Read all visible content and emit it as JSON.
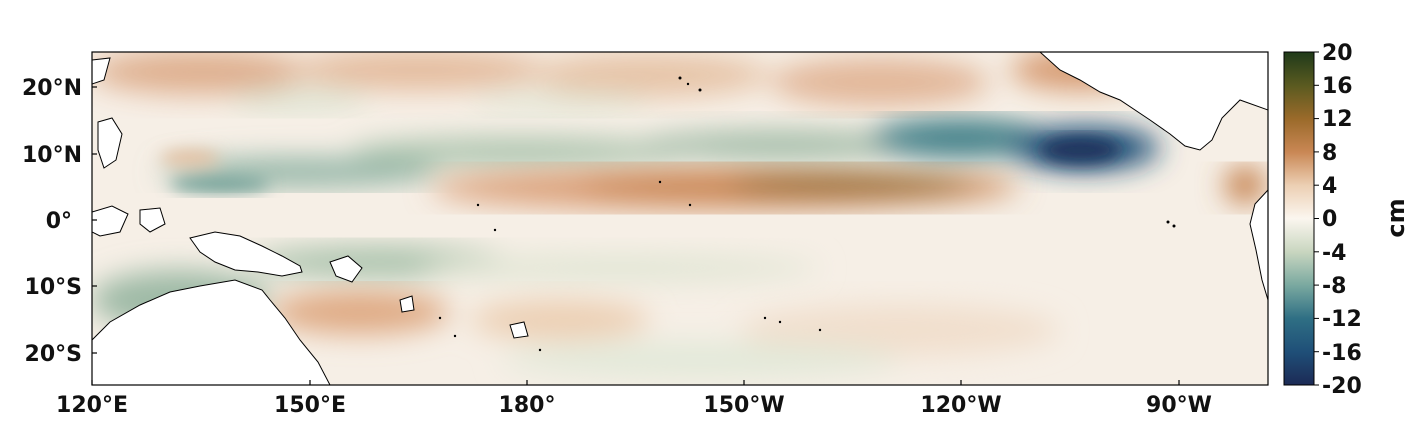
{
  "map": {
    "x_ticks": [
      "120°E",
      "150°E",
      "180°",
      "150°W",
      "120°W",
      "90°W"
    ],
    "y_ticks": [
      "20°N",
      "10°N",
      "0°",
      "10°S",
      "20°S"
    ]
  },
  "colorbar": {
    "unit": "cm",
    "ticks": [
      "20",
      "16",
      "12",
      "8",
      "4",
      "0",
      "-4",
      "-8",
      "-12",
      "-16",
      "-20"
    ],
    "range": [
      -20,
      20
    ],
    "colors": [
      "#1c2a55",
      "#1f5f7a",
      "#5f9a94",
      "#c9d6c0",
      "#fbf6ef",
      "#e8c4a6",
      "#c27a44",
      "#7a5a1c",
      "#1f3a1a"
    ]
  },
  "colors": {
    "land": "#ffffff",
    "coast": "#000000",
    "positive_anomaly": "#c27a44",
    "negative_anomaly": "#1f5f7a"
  }
}
